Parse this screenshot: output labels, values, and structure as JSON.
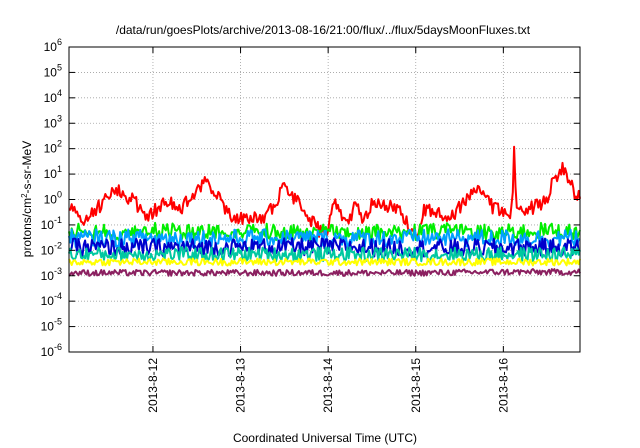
{
  "chart_data": {
    "type": "line",
    "title": "/data/run/goesPlots/archive/2013-08-16/21:00/flux/../flux/5daysMoonFluxes.txt",
    "xlabel": "Coordinated Universal Time (UTC)",
    "ylabel_main": "protons/cm",
    "ylabel_sup": "2",
    "ylabel_rest": "-s-sr-MeV",
    "y_scale": "log",
    "ylim": [
      1e-06,
      1000000.0
    ],
    "yticks": [
      {
        "base": "10",
        "exp": "6"
      },
      {
        "base": "10",
        "exp": "5"
      },
      {
        "base": "10",
        "exp": "4"
      },
      {
        "base": "10",
        "exp": "3"
      },
      {
        "base": "10",
        "exp": "2"
      },
      {
        "base": "10",
        "exp": "1"
      },
      {
        "base": "10",
        "exp": "0"
      },
      {
        "base": "10",
        "exp": "-1"
      },
      {
        "base": "10",
        "exp": "-2"
      },
      {
        "base": "10",
        "exp": "-3"
      },
      {
        "base": "10",
        "exp": "-4"
      },
      {
        "base": "10",
        "exp": "-5"
      },
      {
        "base": "10",
        "exp": "-6"
      }
    ],
    "xlim": [
      "2013-08-11 01:00",
      "2013-08-16 21:00"
    ],
    "xticks": [
      "2013-8-12",
      "2013-8-13",
      "2013-8-14",
      "2013-8-15",
      "2013-8-16"
    ],
    "grid": true,
    "series": [
      {
        "color": "#ff0000",
        "anchors": [
          [
            11.0,
            0.8
          ],
          [
            11.2,
            0.12
          ],
          [
            11.4,
            0.6
          ],
          [
            11.6,
            2.5
          ],
          [
            11.8,
            0.8
          ],
          [
            11.9,
            0.2
          ],
          [
            12.0,
            0.3
          ],
          [
            12.15,
            1.0
          ],
          [
            12.3,
            0.4
          ],
          [
            12.5,
            2.0
          ],
          [
            12.6,
            4.5
          ],
          [
            12.75,
            1.2
          ],
          [
            12.9,
            0.2
          ],
          [
            13.05,
            0.2
          ],
          [
            13.3,
            0.2
          ],
          [
            13.5,
            3.0
          ],
          [
            13.7,
            0.5
          ],
          [
            13.9,
            0.06
          ],
          [
            14.0,
            0.05
          ],
          [
            14.05,
            1.2
          ],
          [
            14.2,
            0.1
          ],
          [
            14.3,
            0.5
          ],
          [
            14.4,
            0.2
          ],
          [
            14.5,
            0.6
          ],
          [
            14.75,
            0.6
          ],
          [
            14.85,
            0.2
          ],
          [
            15.0,
            0.04
          ],
          [
            15.1,
            0.4
          ],
          [
            15.3,
            0.3
          ],
          [
            15.4,
            0.2
          ],
          [
            15.7,
            3.0
          ],
          [
            15.9,
            0.4
          ],
          [
            16.1,
            0.3
          ],
          [
            16.12,
            200
          ],
          [
            16.15,
            0.5
          ],
          [
            16.3,
            0.4
          ],
          [
            16.5,
            1.0
          ],
          [
            16.55,
            5.0
          ],
          [
            16.7,
            20
          ],
          [
            16.8,
            2.0
          ],
          [
            16.9,
            1.0
          ]
        ],
        "noise": 0.28
      },
      {
        "color": "#00ee00",
        "anchors": [
          [
            11.0,
            0.06
          ],
          [
            11.5,
            0.05
          ],
          [
            12.0,
            0.06
          ],
          [
            12.5,
            0.05
          ],
          [
            13.0,
            0.06
          ],
          [
            13.5,
            0.05
          ],
          [
            14.0,
            0.05
          ],
          [
            14.5,
            0.05
          ],
          [
            15.0,
            0.05
          ],
          [
            15.5,
            0.06
          ],
          [
            16.0,
            0.05
          ],
          [
            16.5,
            0.06
          ],
          [
            16.9,
            0.05
          ]
        ],
        "noise": 0.32
      },
      {
        "color": "#00a0ff",
        "anchors": [
          [
            11.0,
            0.03
          ],
          [
            12.0,
            0.03
          ],
          [
            13.0,
            0.03
          ],
          [
            14.0,
            0.03
          ],
          [
            15.0,
            0.03
          ],
          [
            16.0,
            0.03
          ],
          [
            16.9,
            0.03
          ]
        ],
        "noise": 0.35
      },
      {
        "color": "#0000cc",
        "anchors": [
          [
            11.0,
            0.013
          ],
          [
            12.0,
            0.013
          ],
          [
            13.0,
            0.013
          ],
          [
            14.0,
            0.014
          ],
          [
            15.0,
            0.012
          ],
          [
            16.0,
            0.013
          ],
          [
            16.9,
            0.013
          ]
        ],
        "noise": 0.35
      },
      {
        "color": "#00c8a0",
        "anchors": [
          [
            11.0,
            0.007
          ],
          [
            12.0,
            0.007
          ],
          [
            13.0,
            0.007
          ],
          [
            14.0,
            0.007
          ],
          [
            15.0,
            0.007
          ],
          [
            16.0,
            0.007
          ],
          [
            16.9,
            0.007
          ]
        ],
        "noise": 0.28
      },
      {
        "color": "#ffff00",
        "anchors": [
          [
            11.0,
            0.0035
          ],
          [
            12.0,
            0.0035
          ],
          [
            13.0,
            0.0035
          ],
          [
            14.0,
            0.0035
          ],
          [
            15.0,
            0.0035
          ],
          [
            16.0,
            0.0035
          ],
          [
            16.9,
            0.0035
          ]
        ],
        "noise": 0.14
      },
      {
        "color": "#8b2060",
        "anchors": [
          [
            11.0,
            0.0013
          ],
          [
            12.0,
            0.0013
          ],
          [
            13.0,
            0.0013
          ],
          [
            14.0,
            0.0013
          ],
          [
            15.0,
            0.0013
          ],
          [
            16.0,
            0.0014
          ],
          [
            16.9,
            0.0014
          ]
        ],
        "noise": 0.12
      }
    ]
  }
}
